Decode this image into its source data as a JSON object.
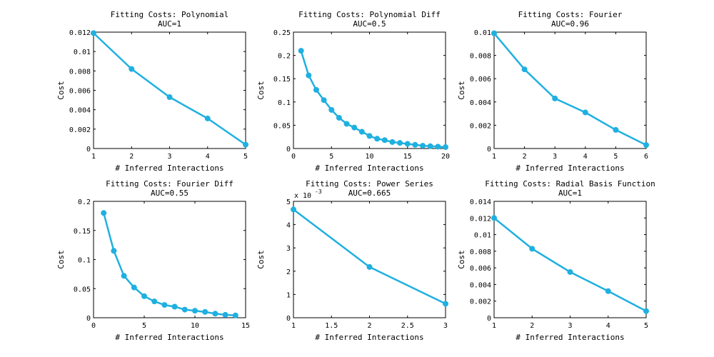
{
  "colors": {
    "line": "#1fb0e0",
    "axis": "#000000",
    "background": "#ffffff"
  },
  "chart_data": [
    {
      "type": "line",
      "title": "Fitting Costs: Polynomial",
      "subtitle": "AUC=1",
      "xlabel": "# Inferred Interactions",
      "ylabel": "Cost",
      "xlim": [
        1,
        5
      ],
      "ylim": [
        0,
        0.012
      ],
      "xticks": [
        1,
        2,
        3,
        4,
        5
      ],
      "xtick_labels": [
        "1",
        "2",
        "3",
        "4",
        "5"
      ],
      "yticks": [
        0,
        0.002,
        0.004,
        0.006,
        0.008,
        0.01,
        0.012
      ],
      "ytick_labels": [
        "0",
        "0.002",
        "0.004",
        "0.006",
        "0.008",
        "0.01",
        "0.012"
      ],
      "exponent_label": "",
      "grid": false,
      "x": [
        1,
        2,
        3,
        4,
        5
      ],
      "y": [
        0.0119,
        0.0082,
        0.0053,
        0.0031,
        0.0004
      ]
    },
    {
      "type": "line",
      "title": "Fitting Costs: Polynomial Diff",
      "subtitle": "AUC=0.5",
      "xlabel": "# Inferred Interactions",
      "ylabel": "Cost",
      "xlim": [
        0,
        20
      ],
      "ylim": [
        0,
        0.25
      ],
      "xticks": [
        0,
        5,
        10,
        15,
        20
      ],
      "xtick_labels": [
        "0",
        "5",
        "10",
        "15",
        "20"
      ],
      "yticks": [
        0,
        0.05,
        0.1,
        0.15,
        0.2,
        0.25
      ],
      "ytick_labels": [
        "0",
        "0.05",
        "0.1",
        "0.15",
        "0.2",
        "0.25"
      ],
      "exponent_label": "",
      "grid": false,
      "x": [
        1,
        2,
        3,
        4,
        5,
        6,
        7,
        8,
        9,
        10,
        11,
        12,
        13,
        14,
        15,
        16,
        17,
        18,
        19,
        20
      ],
      "y": [
        0.21,
        0.157,
        0.126,
        0.104,
        0.083,
        0.066,
        0.053,
        0.045,
        0.036,
        0.027,
        0.021,
        0.018,
        0.014,
        0.012,
        0.01,
        0.008,
        0.006,
        0.005,
        0.004,
        0.003
      ]
    },
    {
      "type": "line",
      "title": "Fitting Costs: Fourier",
      "subtitle": "AUC=0.96",
      "xlabel": "# Inferred Interactions",
      "ylabel": "Cost",
      "xlim": [
        1,
        6
      ],
      "ylim": [
        0,
        0.01
      ],
      "xticks": [
        1,
        2,
        3,
        4,
        5,
        6
      ],
      "xtick_labels": [
        "1",
        "2",
        "3",
        "4",
        "5",
        "6"
      ],
      "yticks": [
        0,
        0.002,
        0.004,
        0.006,
        0.008,
        0.01
      ],
      "ytick_labels": [
        "0",
        "0.002",
        "0.004",
        "0.006",
        "0.008",
        "0.01"
      ],
      "exponent_label": "",
      "grid": false,
      "x": [
        1,
        2,
        3,
        4,
        5,
        6
      ],
      "y": [
        0.0099,
        0.0068,
        0.0043,
        0.0031,
        0.0016,
        0.0003
      ]
    },
    {
      "type": "line",
      "title": "Fitting Costs: Fourier Diff",
      "subtitle": "AUC=0.55",
      "xlabel": "# Inferred Interactions",
      "ylabel": "Cost",
      "xlim": [
        0,
        15
      ],
      "ylim": [
        0,
        0.2
      ],
      "xticks": [
        0,
        5,
        10,
        15
      ],
      "xtick_labels": [
        "0",
        "5",
        "10",
        "15"
      ],
      "yticks": [
        0,
        0.05,
        0.1,
        0.15,
        0.2
      ],
      "ytick_labels": [
        "0",
        "0.05",
        "0.1",
        "0.15",
        "0.2"
      ],
      "exponent_label": "",
      "grid": false,
      "x": [
        1,
        2,
        3,
        4,
        5,
        6,
        7,
        8,
        9,
        10,
        11,
        12,
        13,
        14
      ],
      "y": [
        0.18,
        0.115,
        0.072,
        0.052,
        0.037,
        0.028,
        0.022,
        0.019,
        0.014,
        0.012,
        0.01,
        0.007,
        0.005,
        0.004
      ]
    },
    {
      "type": "line",
      "title": "Fitting Costs: Power Series",
      "subtitle": "AUC=0.665",
      "xlabel": "# Inferred Interactions",
      "ylabel": "Cost",
      "xlim": [
        1,
        3
      ],
      "ylim": [
        0,
        5
      ],
      "xticks": [
        1,
        1.5,
        2,
        2.5,
        3
      ],
      "xtick_labels": [
        "1",
        "1.5",
        "2",
        "2.5",
        "3"
      ],
      "yticks": [
        0,
        1,
        2,
        3,
        4,
        5
      ],
      "ytick_labels": [
        "0",
        "1",
        "2",
        "3",
        "4",
        "5"
      ],
      "exponent_label": "x 10",
      "exponent_power": "-3",
      "grid": false,
      "x": [
        1,
        2,
        3
      ],
      "y": [
        4.65,
        2.18,
        0.6
      ]
    },
    {
      "type": "line",
      "title": "Fitting Costs: Radial Basis Function",
      "subtitle": "AUC=1",
      "xlabel": "# Inferred Interactions",
      "ylabel": "Cost",
      "xlim": [
        1,
        5
      ],
      "ylim": [
        0,
        0.014
      ],
      "xticks": [
        1,
        2,
        3,
        4,
        5
      ],
      "xtick_labels": [
        "1",
        "2",
        "3",
        "4",
        "5"
      ],
      "yticks": [
        0,
        0.002,
        0.004,
        0.006,
        0.008,
        0.01,
        0.012,
        0.014
      ],
      "ytick_labels": [
        "0",
        "0.002",
        "0.004",
        "0.006",
        "0.008",
        "0.01",
        "0.012",
        "0.014"
      ],
      "exponent_label": "",
      "grid": false,
      "x": [
        1,
        2,
        3,
        4,
        5
      ],
      "y": [
        0.012,
        0.0083,
        0.0055,
        0.0032,
        0.0008
      ]
    }
  ]
}
